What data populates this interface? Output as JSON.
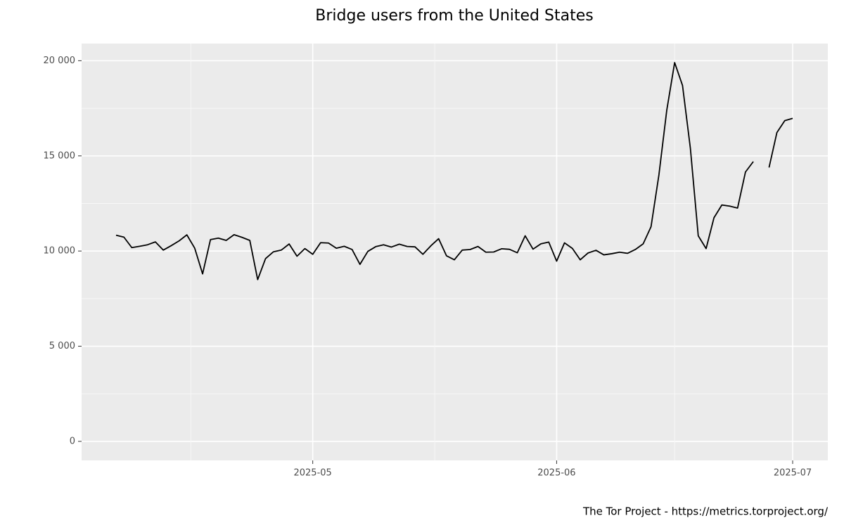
{
  "chart_data": {
    "type": "line",
    "title": "Bridge users from the United States",
    "caption": "The Tor Project - https://metrics.torproject.org/",
    "categories": [
      null,
      null,
      null,
      null,
      null,
      null,
      null,
      null,
      null,
      null,
      null,
      null,
      null,
      null,
      null,
      null,
      null,
      null,
      null,
      null,
      null,
      null,
      null,
      null,
      null,
      "2025-05",
      null,
      null,
      null,
      null,
      null,
      null,
      null,
      null,
      null,
      null,
      null,
      null,
      null,
      null,
      null,
      null,
      null,
      null,
      null,
      null,
      null,
      null,
      null,
      null,
      null,
      null,
      null,
      null,
      null,
      null,
      "2025-06",
      null,
      null,
      null,
      null,
      null,
      null,
      null,
      null,
      null,
      null,
      null,
      null,
      null,
      null,
      null,
      null,
      null,
      null,
      null,
      null,
      null,
      null,
      null,
      null,
      null,
      null,
      null,
      null,
      null,
      "2025-07"
    ],
    "series": [
      {
        "color": "#000000",
        "values": [
          10830,
          10730,
          10180,
          10250,
          10330,
          10480,
          10050,
          10280,
          10530,
          10850,
          10150,
          8800,
          10600,
          10680,
          10560,
          10860,
          10720,
          10560,
          8500,
          9600,
          9960,
          10050,
          10370,
          9730,
          10130,
          9830,
          10440,
          10420,
          10150,
          10250,
          10080,
          9300,
          9980,
          10230,
          10330,
          10210,
          10360,
          10240,
          10220,
          9830,
          10270,
          10650,
          9750,
          9540,
          10050,
          10080,
          10240,
          9940,
          9950,
          10120,
          10090,
          9910,
          10800,
          10100,
          10380,
          10470,
          9470,
          10430,
          10140,
          9540,
          9900,
          10040,
          9800,
          9860,
          9940,
          9880,
          10080,
          10380,
          11280,
          14000,
          17400,
          19900,
          18700,
          15400,
          10800,
          10130,
          11750,
          12420,
          12360,
          12260,
          14150,
          14700,
          null,
          14390,
          16230,
          16850,
          16970
        ]
      }
    ],
    "ylim": [
      -1000,
      20900
    ],
    "yticks": [
      0,
      {
        "value": 5000,
        "label": "5 000"
      },
      {
        "value": 10000,
        "label": "10 000"
      },
      {
        "value": 15000,
        "label": "15 000"
      },
      {
        "value": 20000,
        "label": "20 000"
      }
    ],
    "grid": true
  }
}
